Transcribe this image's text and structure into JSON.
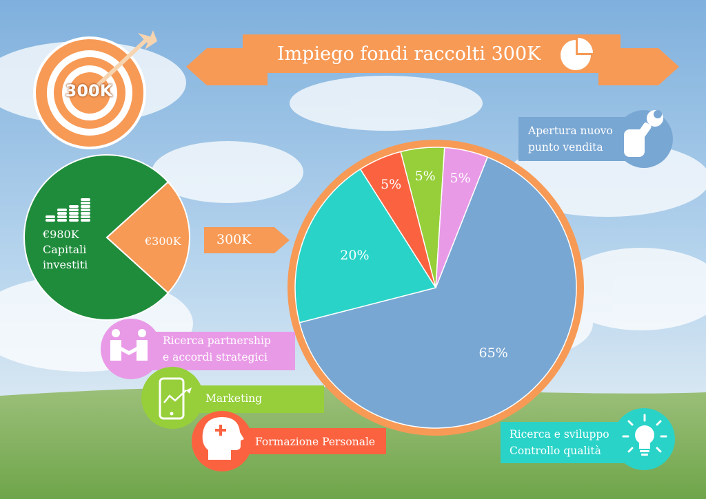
{
  "banner": {
    "title": "Impiego fondi raccolti 300K",
    "color": "#f79a56"
  },
  "target": {
    "label": "300K",
    "color": "#f79a56"
  },
  "pointer_label": "300K",
  "left_pie": {
    "slices": [
      {
        "label_lines": [
          "€980K",
          "Capitali",
          "investiti"
        ],
        "value": 980,
        "color": "#1f8c3c"
      },
      {
        "label": "€300K",
        "value": 300,
        "color": "#f79a56"
      }
    ]
  },
  "chart_data": {
    "type": "pie",
    "title": "Impiego fondi raccolti 300K",
    "slices": [
      {
        "label": "Apertura nuovo punto vendita",
        "label_lines": [
          "Apertura nuovo",
          "punto vendita"
        ],
        "value": 65,
        "display": "65%",
        "color": "#79a7d3"
      },
      {
        "label": "Ricerca e sviluppo Controllo qualità",
        "label_lines": [
          "Ricerca e sviluppo",
          "Controllo qualità"
        ],
        "value": 20,
        "display": "20%",
        "color": "#2ad3c8"
      },
      {
        "label": "Formazione Personale",
        "label_lines": [
          "Formazione Personale"
        ],
        "value": 5,
        "display": "5%",
        "color": "#fb6340"
      },
      {
        "label": "Marketing",
        "label_lines": [
          "Marketing"
        ],
        "value": 5,
        "display": "5%",
        "color": "#96cf3a"
      },
      {
        "label": "Ricerca partnership e accordi strategici",
        "label_lines": [
          "Ricerca partnership",
          "e accordi strategici"
        ],
        "value": 5,
        "display": "5%",
        "color": "#e99ae7"
      }
    ]
  },
  "icons": {
    "target": "target-arrow-icon",
    "banner": "pie-chart-icon",
    "coins": "coin-stacks-icon",
    "wrench": "wrench-hand-icon",
    "handshake": "handshake-icon",
    "tablet": "tablet-chart-icon",
    "head": "head-plus-icon",
    "bulb": "lightbulb-icon"
  }
}
